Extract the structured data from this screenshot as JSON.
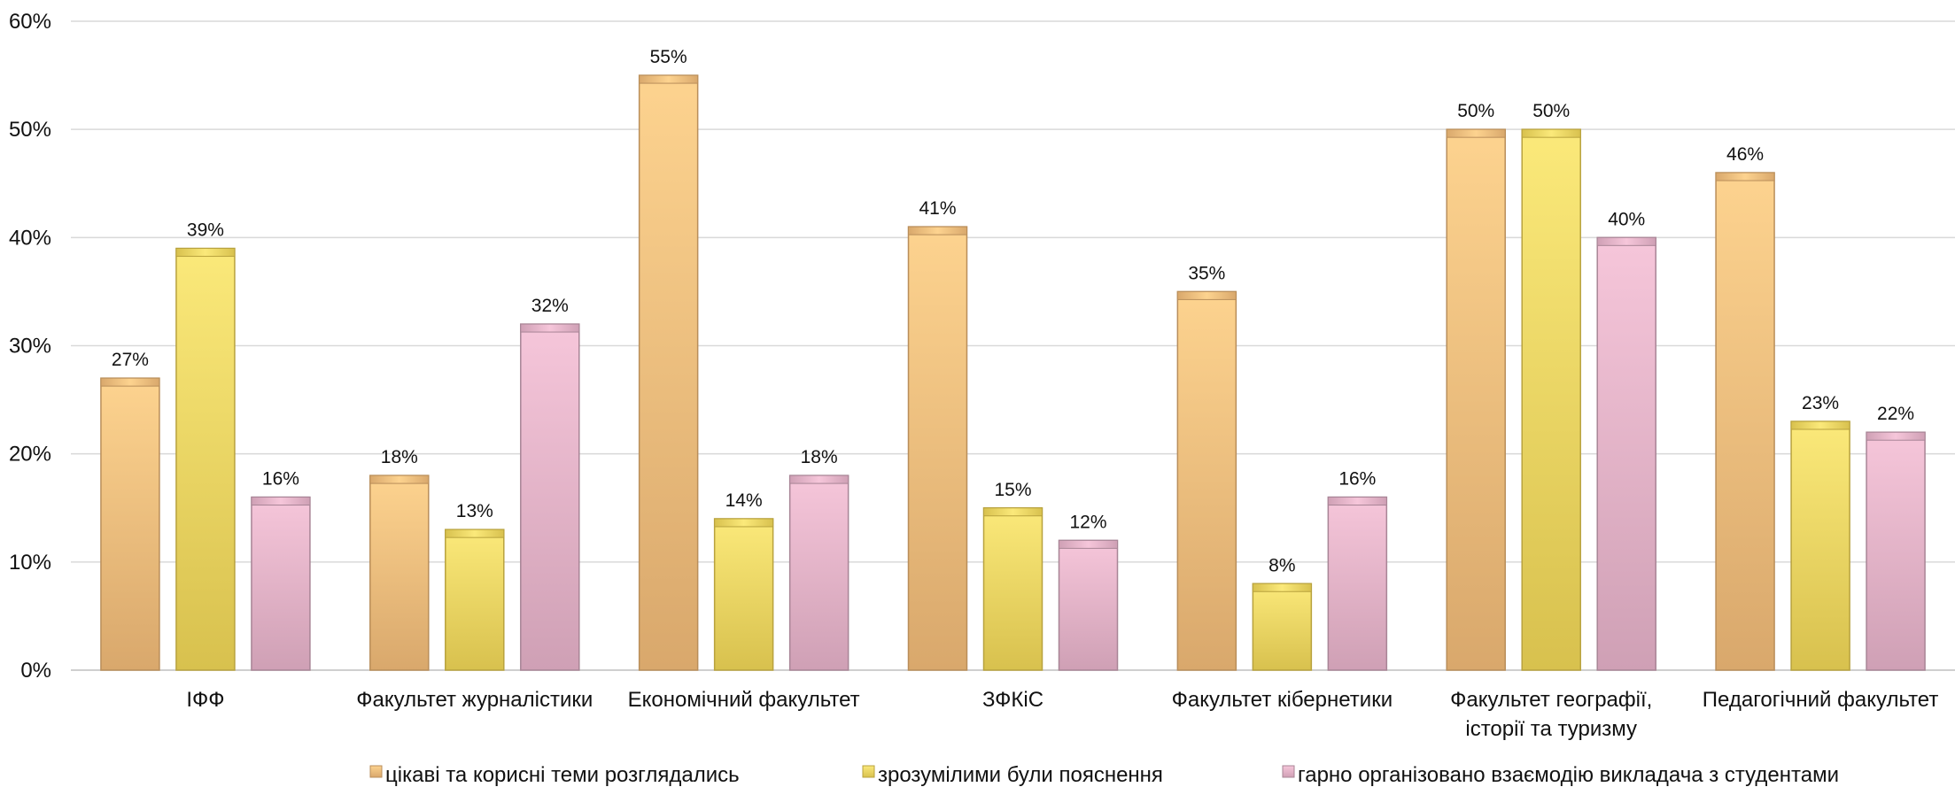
{
  "chart_data": {
    "type": "bar",
    "categories": [
      [
        "ІФФ"
      ],
      [
        "Факультет журналістики"
      ],
      [
        "Економічний факультет"
      ],
      [
        "ЗФКіС"
      ],
      [
        "Факультет кібернетики"
      ],
      [
        "Факультет географії,",
        "історії та туризму"
      ],
      [
        "Педагогічний факультет"
      ]
    ],
    "series": [
      {
        "name": "цікаві та корисні теми розглядались",
        "values": [
          27,
          18,
          55,
          41,
          35,
          50,
          46
        ],
        "labels": [
          "27%",
          "18%",
          "55%",
          "41%",
          "35%",
          "50%",
          "46%"
        ]
      },
      {
        "name": "зрозумілими були пояснення",
        "values": [
          39,
          13,
          14,
          15,
          8,
          50,
          23
        ],
        "labels": [
          "39%",
          "13%",
          "14%",
          "15%",
          "8%",
          "50%",
          "23%"
        ]
      },
      {
        "name": "гарно організовано взаємодію викладача з студентами",
        "values": [
          16,
          32,
          18,
          12,
          16,
          40,
          22
        ],
        "labels": [
          "16%",
          "32%",
          "18%",
          "12%",
          "16%",
          "40%",
          "22%"
        ]
      }
    ],
    "y_ticks": [
      "0%",
      "10%",
      "20%",
      "30%",
      "40%",
      "50%",
      "60%"
    ],
    "ylim": [
      0,
      60
    ],
    "grid": true,
    "legend_position": "bottom",
    "colors": {
      "series": [
        [
          "#fdd38f",
          "#d9a86c",
          "#b98e5a"
        ],
        [
          "#fbe97a",
          "#d8c14e",
          "#b8a23e"
        ],
        [
          "#f6c6da",
          "#cfa0b5",
          "#a88596"
        ]
      ],
      "grid": "#d9d9d9",
      "axis": "#bfbfbf"
    }
  }
}
